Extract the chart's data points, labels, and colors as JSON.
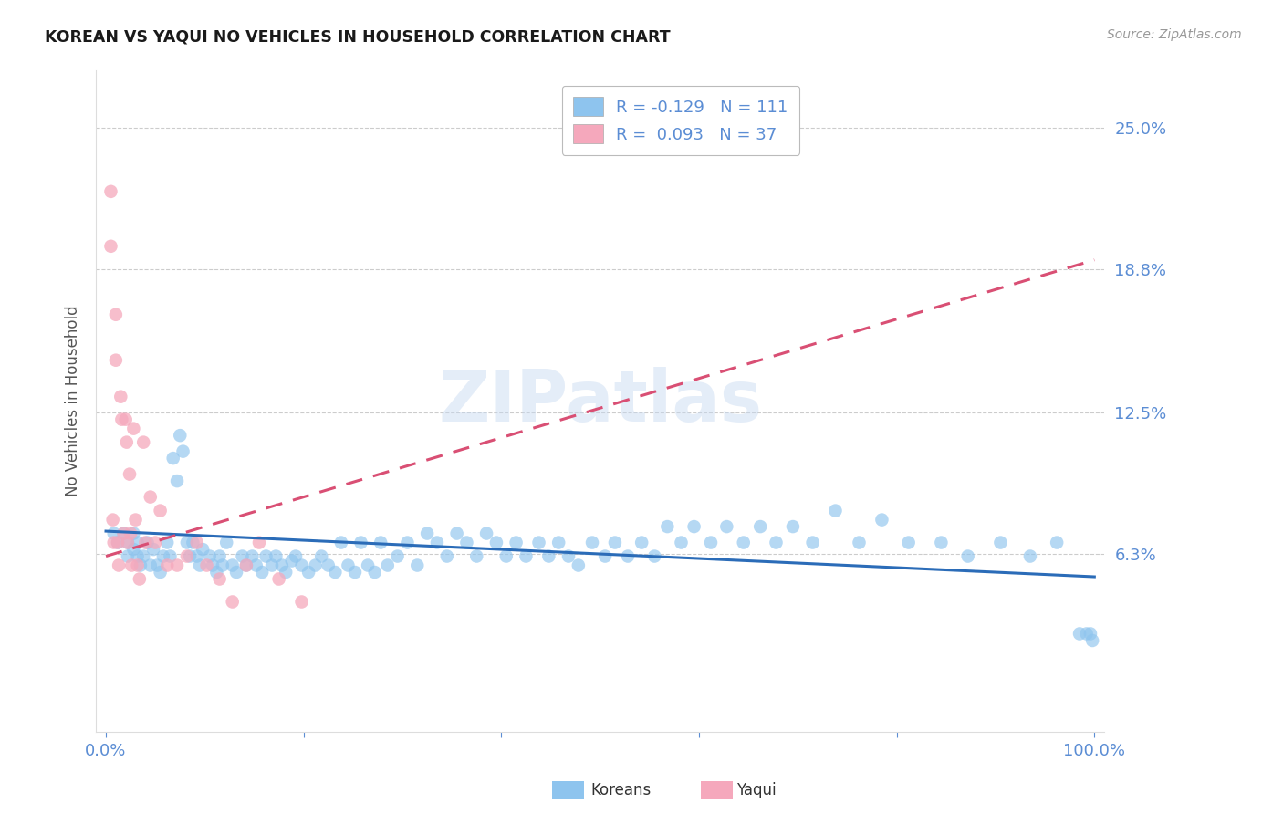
{
  "title": "KOREAN VS YAQUI NO VEHICLES IN HOUSEHOLD CORRELATION CHART",
  "source": "Source: ZipAtlas.com",
  "ylabel": "No Vehicles in Household",
  "ytick_labels": [
    "25.0%",
    "18.8%",
    "12.5%",
    "6.3%"
  ],
  "ytick_values": [
    0.25,
    0.188,
    0.125,
    0.063
  ],
  "xlim": [
    -0.01,
    1.01
  ],
  "ylim": [
    -0.015,
    0.275
  ],
  "korean_color": "#8EC4EE",
  "yaqui_color": "#F5A8BC",
  "korean_line_color": "#2B6CB8",
  "yaqui_line_color": "#D94F74",
  "legend_korean": "R = -0.129   N = 111",
  "legend_yaqui": "R =  0.093   N = 37",
  "legend_label_korean": "Koreans",
  "legend_label_yaqui": "Yaqui",
  "watermark": "ZIPatlas",
  "korean_scatter_x": [
    0.008,
    0.012,
    0.018,
    0.022,
    0.022,
    0.028,
    0.028,
    0.032,
    0.032,
    0.035,
    0.038,
    0.042,
    0.045,
    0.048,
    0.052,
    0.055,
    0.058,
    0.062,
    0.065,
    0.068,
    0.072,
    0.075,
    0.078,
    0.082,
    0.085,
    0.088,
    0.092,
    0.095,
    0.098,
    0.105,
    0.108,
    0.112,
    0.115,
    0.118,
    0.122,
    0.128,
    0.132,
    0.138,
    0.142,
    0.148,
    0.152,
    0.158,
    0.162,
    0.168,
    0.172,
    0.178,
    0.182,
    0.188,
    0.192,
    0.198,
    0.205,
    0.212,
    0.218,
    0.225,
    0.232,
    0.238,
    0.245,
    0.252,
    0.258,
    0.265,
    0.272,
    0.278,
    0.285,
    0.295,
    0.305,
    0.315,
    0.325,
    0.335,
    0.345,
    0.355,
    0.365,
    0.375,
    0.385,
    0.395,
    0.405,
    0.415,
    0.425,
    0.438,
    0.448,
    0.458,
    0.468,
    0.478,
    0.492,
    0.505,
    0.515,
    0.528,
    0.542,
    0.555,
    0.568,
    0.582,
    0.595,
    0.612,
    0.628,
    0.645,
    0.662,
    0.678,
    0.695,
    0.715,
    0.738,
    0.762,
    0.785,
    0.812,
    0.845,
    0.872,
    0.905,
    0.935,
    0.962,
    0.985,
    0.992,
    0.996,
    0.998
  ],
  "korean_scatter_y": [
    0.072,
    0.068,
    0.072,
    0.068,
    0.062,
    0.072,
    0.065,
    0.068,
    0.062,
    0.058,
    0.062,
    0.068,
    0.058,
    0.065,
    0.058,
    0.055,
    0.062,
    0.068,
    0.062,
    0.105,
    0.095,
    0.115,
    0.108,
    0.068,
    0.062,
    0.068,
    0.062,
    0.058,
    0.065,
    0.062,
    0.058,
    0.055,
    0.062,
    0.058,
    0.068,
    0.058,
    0.055,
    0.062,
    0.058,
    0.062,
    0.058,
    0.055,
    0.062,
    0.058,
    0.062,
    0.058,
    0.055,
    0.06,
    0.062,
    0.058,
    0.055,
    0.058,
    0.062,
    0.058,
    0.055,
    0.068,
    0.058,
    0.055,
    0.068,
    0.058,
    0.055,
    0.068,
    0.058,
    0.062,
    0.068,
    0.058,
    0.072,
    0.068,
    0.062,
    0.072,
    0.068,
    0.062,
    0.072,
    0.068,
    0.062,
    0.068,
    0.062,
    0.068,
    0.062,
    0.068,
    0.062,
    0.058,
    0.068,
    0.062,
    0.068,
    0.062,
    0.068,
    0.062,
    0.075,
    0.068,
    0.075,
    0.068,
    0.075,
    0.068,
    0.075,
    0.068,
    0.075,
    0.068,
    0.082,
    0.068,
    0.078,
    0.068,
    0.068,
    0.062,
    0.068,
    0.062,
    0.068,
    0.028,
    0.028,
    0.028,
    0.025
  ],
  "yaqui_scatter_x": [
    0.005,
    0.005,
    0.007,
    0.008,
    0.01,
    0.01,
    0.012,
    0.013,
    0.015,
    0.016,
    0.018,
    0.02,
    0.021,
    0.022,
    0.024,
    0.025,
    0.026,
    0.028,
    0.03,
    0.032,
    0.034,
    0.038,
    0.04,
    0.045,
    0.05,
    0.055,
    0.062,
    0.072,
    0.082,
    0.092,
    0.102,
    0.115,
    0.128,
    0.142,
    0.155,
    0.175,
    0.198
  ],
  "yaqui_scatter_y": [
    0.222,
    0.198,
    0.078,
    0.068,
    0.168,
    0.148,
    0.068,
    0.058,
    0.132,
    0.122,
    0.072,
    0.122,
    0.112,
    0.068,
    0.098,
    0.072,
    0.058,
    0.118,
    0.078,
    0.058,
    0.052,
    0.112,
    0.068,
    0.088,
    0.068,
    0.082,
    0.058,
    0.058,
    0.062,
    0.068,
    0.058,
    0.052,
    0.042,
    0.058,
    0.068,
    0.052,
    0.042
  ],
  "korean_line_x": [
    0.0,
    1.0
  ],
  "korean_line_y": [
    0.073,
    0.053
  ],
  "yaqui_line_x": [
    0.0,
    1.0
  ],
  "yaqui_line_y": [
    0.062,
    0.192
  ]
}
